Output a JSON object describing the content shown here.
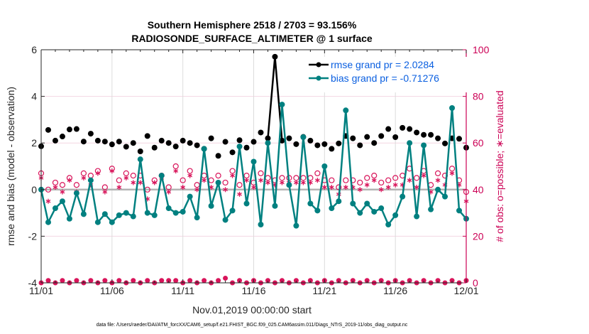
{
  "chart_data": {
    "type": "line",
    "title": [
      "Southern Hemisphere 2518 / 2703 = 93.156%",
      "RADIOSONDE_SURFACE_ALTIMETER @ 1 surface"
    ],
    "xlabel": "Nov.01,2019 00:00:00 start",
    "ylabel": "rmse and bias (model - observation)",
    "ylabel_right": "# of obs: o=possible; ∗=evaluated",
    "footnote": "data file: /Users/raeder/DAI/ATM_forcXX/CAM6_setup/f.e21.FHIST_BGC.f09_025.CAM6assim.011/Diags_NTrS_2019-11/obs_diag_output.nc",
    "x_tick_labels": [
      "11/01",
      "11/06",
      "11/11",
      "11/16",
      "11/21",
      "11/26",
      "12/01"
    ],
    "x_range_days": [
      0,
      30
    ],
    "ylim": [
      -4,
      6
    ],
    "y_ticks": [
      -4,
      -2,
      0,
      2,
      4,
      6
    ],
    "ylim_right": [
      0,
      100
    ],
    "y_ticks_right": [
      0,
      20,
      40,
      60,
      80,
      100
    ],
    "grid": true,
    "legend_position": "top-right",
    "colors": {
      "rmse": "#000000",
      "bias": "#008080",
      "obs": "#d8145a",
      "zero_line": "#b3b3b3"
    },
    "x_step_days": 0.5,
    "series": [
      {
        "name": "rmse grand pr = 2.0284",
        "key": "rmse",
        "values": [
          1.86,
          2.56,
          2.1,
          2.28,
          2.58,
          2.6,
          2.06,
          2.4,
          2.1,
          2.06,
          1.94,
          2.06,
          1.84,
          2.0,
          1.64,
          2.3,
          1.8,
          2.1,
          2.0,
          1.85,
          2.1,
          2.0,
          1.9,
          1.75,
          2.2,
          1.45,
          2.05,
          1.6,
          2.12,
          1.8,
          2.05,
          2.45,
          2.2,
          5.7,
          2.1,
          2.2,
          1.95,
          2.26,
          2.1,
          1.9,
          1.95,
          1.75,
          1.98,
          2.3,
          2.2,
          1.9,
          2.26,
          2.0,
          2.3,
          2.6,
          2.25,
          2.65,
          2.6,
          2.45,
          2.35,
          2.35,
          2.2,
          1.98,
          2.2,
          2.18,
          1.8
        ]
      },
      {
        "name": "bias grand pr = -0.71276",
        "key": "bias",
        "values": [
          0.0,
          -1.4,
          -0.8,
          -0.5,
          -1.25,
          -0.15,
          -1.05,
          0.4,
          -1.4,
          -1.05,
          -1.4,
          -1.1,
          -1.0,
          -1.15,
          1.3,
          -1.0,
          -1.1,
          0.6,
          -0.8,
          -1.0,
          -0.95,
          -0.3,
          -1.2,
          1.75,
          -0.7,
          0.3,
          -1.3,
          -0.9,
          1.85,
          -0.6,
          1.2,
          -1.5,
          2.0,
          -0.7,
          3.65,
          0.2,
          -1.55,
          2.25,
          -0.6,
          -0.9,
          1.0,
          -0.8,
          -0.5,
          3.4,
          -0.6,
          -1.0,
          -0.6,
          -0.95,
          -0.8,
          -1.5,
          -1.1,
          -0.3,
          2.0,
          -1.15,
          1.9,
          -0.85,
          0.0,
          -0.3,
          3.5,
          -0.9,
          -1.25
        ]
      },
      {
        "name": "possible obs",
        "key": "possible",
        "marker": "o",
        "values": [
          47,
          40,
          43,
          42,
          45,
          42,
          47,
          46,
          48,
          41,
          49,
          44,
          47,
          46,
          46,
          40,
          44,
          46,
          41,
          50,
          44,
          48,
          42,
          46,
          44,
          46,
          43,
          48,
          42,
          46,
          43,
          47,
          45,
          44,
          45,
          45,
          45,
          45,
          45,
          47,
          44,
          44,
          41,
          44,
          44,
          43,
          45,
          46,
          43,
          44,
          45,
          46,
          49,
          45,
          48,
          42,
          47,
          46,
          49,
          44,
          39
        ]
      },
      {
        "name": "evaluated obs",
        "key": "evaluated",
        "marker": "*",
        "values": [
          45,
          35,
          41,
          39,
          44,
          39,
          45,
          42,
          47,
          39,
          48,
          41,
          45,
          43,
          43,
          36,
          43,
          45,
          39,
          48,
          41,
          46,
          40,
          44,
          41,
          43,
          40,
          46,
          38,
          44,
          41,
          44,
          43,
          42,
          43,
          43,
          43,
          43,
          43,
          44,
          41,
          41,
          38,
          41,
          41,
          40,
          42,
          44,
          40,
          41,
          42,
          42,
          44,
          41,
          46,
          39,
          44,
          42,
          47,
          42,
          35
        ]
      },
      {
        "name": "possible obs (bottom row)",
        "key": "possible_bottom",
        "marker": "o",
        "values": [
          0,
          1,
          0,
          1,
          0,
          1,
          0,
          1,
          0,
          1,
          0,
          1,
          0,
          1,
          0,
          1,
          0,
          1,
          1,
          1,
          0,
          1,
          0,
          1,
          0,
          1,
          2,
          0,
          1,
          0,
          1,
          0,
          1,
          0,
          1,
          0,
          1,
          0,
          1,
          0,
          1,
          0,
          1,
          0,
          1,
          0,
          1,
          0,
          1,
          0,
          1,
          0,
          1,
          0,
          1,
          0,
          1,
          0,
          1,
          0,
          1
        ]
      }
    ]
  }
}
